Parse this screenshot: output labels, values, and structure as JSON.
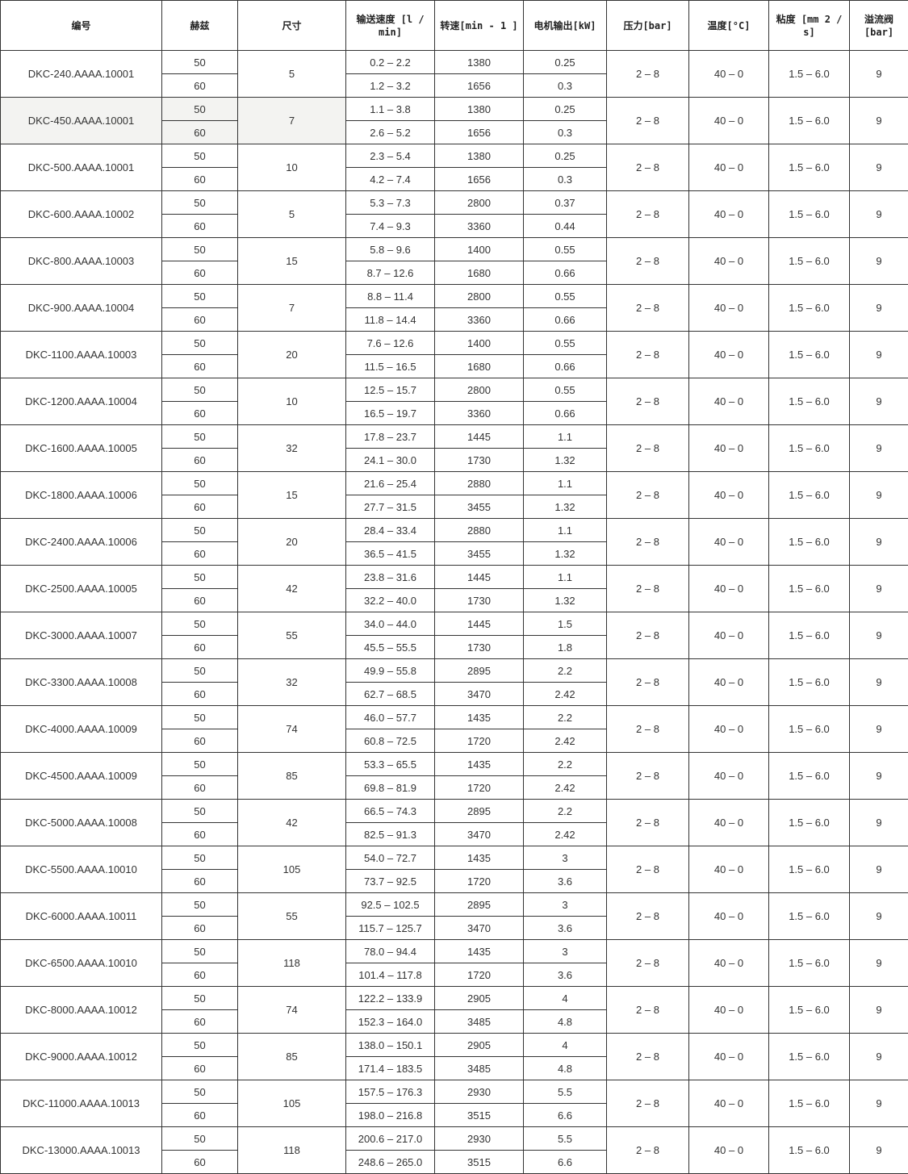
{
  "headers": [
    "编号",
    "赫兹",
    "尺寸",
    "输送速度 [l / min]",
    "转速[min - 1 ]",
    "电机输出[kW]",
    "压力[bar]",
    "温度[°C]",
    "粘度 [mm 2 / s]",
    "溢流阀 [bar]"
  ],
  "rows": [
    {
      "model": "DKC-240.AAAA.10001",
      "size": "5",
      "hz": [
        "50",
        "60"
      ],
      "flow": [
        "0.2 – 2.2",
        "1.2 – 3.2"
      ],
      "rpm": [
        "1380",
        "1656"
      ],
      "kw": [
        "0.25",
        "0.3"
      ],
      "pressure": "2 – 8",
      "temp": "40 – 0",
      "visc": "1.5 – 6.0",
      "relief": "9"
    },
    {
      "model": "DKC-450.AAAA.10001",
      "size": "7",
      "hz": [
        "50",
        "60"
      ],
      "flow": [
        "1.1 – 3.8",
        "2.6 – 5.2"
      ],
      "rpm": [
        "1380",
        "1656"
      ],
      "kw": [
        "0.25",
        "0.3"
      ],
      "pressure": "2 – 8",
      "temp": "40 – 0",
      "visc": "1.5 – 6.0",
      "relief": "9",
      "highlighted": true
    },
    {
      "model": "DKC-500.AAAA.10001",
      "size": "10",
      "hz": [
        "50",
        "60"
      ],
      "flow": [
        "2.3 – 5.4",
        "4.2 – 7.4"
      ],
      "rpm": [
        "1380",
        "1656"
      ],
      "kw": [
        "0.25",
        "0.3"
      ],
      "pressure": "2 – 8",
      "temp": "40 – 0",
      "visc": "1.5 – 6.0",
      "relief": "9"
    },
    {
      "model": "DKC-600.AAAA.10002",
      "size": "5",
      "hz": [
        "50",
        "60"
      ],
      "flow": [
        "5.3 – 7.3",
        "7.4 – 9.3"
      ],
      "rpm": [
        "2800",
        "3360"
      ],
      "kw": [
        "0.37",
        "0.44"
      ],
      "pressure": "2 – 8",
      "temp": "40 – 0",
      "visc": "1.5 – 6.0",
      "relief": "9"
    },
    {
      "model": "DKC-800.AAAA.10003",
      "size": "15",
      "hz": [
        "50",
        "60"
      ],
      "flow": [
        "5.8 – 9.6",
        "8.7 – 12.6"
      ],
      "rpm": [
        "1400",
        "1680"
      ],
      "kw": [
        "0.55",
        "0.66"
      ],
      "pressure": "2 – 8",
      "temp": "40 – 0",
      "visc": "1.5 – 6.0",
      "relief": "9"
    },
    {
      "model": "DKC-900.AAAA.10004",
      "size": "7",
      "hz": [
        "50",
        "60"
      ],
      "flow": [
        "8.8 – 11.4",
        "11.8 – 14.4"
      ],
      "rpm": [
        "2800",
        "3360"
      ],
      "kw": [
        "0.55",
        "0.66"
      ],
      "pressure": "2 – 8",
      "temp": "40 – 0",
      "visc": "1.5 – 6.0",
      "relief": "9"
    },
    {
      "model": "DKC-1100.AAAA.10003",
      "size": "20",
      "hz": [
        "50",
        "60"
      ],
      "flow": [
        "7.6 – 12.6",
        "11.5 – 16.5"
      ],
      "rpm": [
        "1400",
        "1680"
      ],
      "kw": [
        "0.55",
        "0.66"
      ],
      "pressure": "2 – 8",
      "temp": "40 – 0",
      "visc": "1.5 – 6.0",
      "relief": "9"
    },
    {
      "model": "DKC-1200.AAAA.10004",
      "size": "10",
      "hz": [
        "50",
        "60"
      ],
      "flow": [
        "12.5 – 15.7",
        "16.5 – 19.7"
      ],
      "rpm": [
        "2800",
        "3360"
      ],
      "kw": [
        "0.55",
        "0.66"
      ],
      "pressure": "2 – 8",
      "temp": "40 – 0",
      "visc": "1.5 – 6.0",
      "relief": "9"
    },
    {
      "model": "DKC-1600.AAAA.10005",
      "size": "32",
      "hz": [
        "50",
        "60"
      ],
      "flow": [
        "17.8 – 23.7",
        "24.1 – 30.0"
      ],
      "rpm": [
        "1445",
        "1730"
      ],
      "kw": [
        "1.1",
        "1.32"
      ],
      "pressure": "2 – 8",
      "temp": "40 – 0",
      "visc": "1.5 – 6.0",
      "relief": "9"
    },
    {
      "model": "DKC-1800.AAAA.10006",
      "size": "15",
      "hz": [
        "50",
        "60"
      ],
      "flow": [
        "21.6 – 25.4",
        "27.7 – 31.5"
      ],
      "rpm": [
        "2880",
        "3455"
      ],
      "kw": [
        "1.1",
        "1.32"
      ],
      "pressure": "2 – 8",
      "temp": "40 – 0",
      "visc": "1.5 – 6.0",
      "relief": "9"
    },
    {
      "model": "DKC-2400.AAAA.10006",
      "size": "20",
      "hz": [
        "50",
        "60"
      ],
      "flow": [
        "28.4 – 33.4",
        "36.5 – 41.5"
      ],
      "rpm": [
        "2880",
        "3455"
      ],
      "kw": [
        "1.1",
        "1.32"
      ],
      "pressure": "2 – 8",
      "temp": "40 – 0",
      "visc": "1.5 – 6.0",
      "relief": "9"
    },
    {
      "model": "DKC-2500.AAAA.10005",
      "size": "42",
      "hz": [
        "50",
        "60"
      ],
      "flow": [
        "23.8 – 31.6",
        "32.2 – 40.0"
      ],
      "rpm": [
        "1445",
        "1730"
      ],
      "kw": [
        "1.1",
        "1.32"
      ],
      "pressure": "2 – 8",
      "temp": "40 – 0",
      "visc": "1.5 – 6.0",
      "relief": "9"
    },
    {
      "model": "DKC-3000.AAAA.10007",
      "size": "55",
      "hz": [
        "50",
        "60"
      ],
      "flow": [
        "34.0 – 44.0",
        "45.5 – 55.5"
      ],
      "rpm": [
        "1445",
        "1730"
      ],
      "kw": [
        "1.5",
        "1.8"
      ],
      "pressure": "2 – 8",
      "temp": "40 – 0",
      "visc": "1.5 – 6.0",
      "relief": "9"
    },
    {
      "model": "DKC-3300.AAAA.10008",
      "size": "32",
      "hz": [
        "50",
        "60"
      ],
      "flow": [
        "49.9 – 55.8",
        "62.7 – 68.5"
      ],
      "rpm": [
        "2895",
        "3470"
      ],
      "kw": [
        "2.2",
        "2.42"
      ],
      "pressure": "2 – 8",
      "temp": "40 – 0",
      "visc": "1.5 – 6.0",
      "relief": "9"
    },
    {
      "model": "DKC-4000.AAAA.10009",
      "size": "74",
      "hz": [
        "50",
        "60"
      ],
      "flow": [
        "46.0 – 57.7",
        "60.8 – 72.5"
      ],
      "rpm": [
        "1435",
        "1720"
      ],
      "kw": [
        "2.2",
        "2.42"
      ],
      "pressure": "2 – 8",
      "temp": "40 – 0",
      "visc": "1.5 – 6.0",
      "relief": "9"
    },
    {
      "model": "DKC-4500.AAAA.10009",
      "size": "85",
      "hz": [
        "50",
        "60"
      ],
      "flow": [
        "53.3 – 65.5",
        "69.8 – 81.9"
      ],
      "rpm": [
        "1435",
        "1720"
      ],
      "kw": [
        "2.2",
        "2.42"
      ],
      "pressure": "2 – 8",
      "temp": "40 – 0",
      "visc": "1.5 – 6.0",
      "relief": "9"
    },
    {
      "model": "DKC-5000.AAAA.10008",
      "size": "42",
      "hz": [
        "50",
        "60"
      ],
      "flow": [
        "66.5 – 74.3",
        "82.5 – 91.3"
      ],
      "rpm": [
        "2895",
        "3470"
      ],
      "kw": [
        "2.2",
        "2.42"
      ],
      "pressure": "2 – 8",
      "temp": "40 – 0",
      "visc": "1.5 – 6.0",
      "relief": "9"
    },
    {
      "model": "DKC-5500.AAAA.10010",
      "size": "105",
      "hz": [
        "50",
        "60"
      ],
      "flow": [
        "54.0 – 72.7",
        "73.7 – 92.5"
      ],
      "rpm": [
        "1435",
        "1720"
      ],
      "kw": [
        "3",
        "3.6"
      ],
      "pressure": "2 – 8",
      "temp": "40 – 0",
      "visc": "1.5 – 6.0",
      "relief": "9"
    },
    {
      "model": "DKC-6000.AAAA.10011",
      "size": "55",
      "hz": [
        "50",
        "60"
      ],
      "flow": [
        "92.5 – 102.5",
        "115.7 – 125.7"
      ],
      "rpm": [
        "2895",
        "3470"
      ],
      "kw": [
        "3",
        "3.6"
      ],
      "pressure": "2 – 8",
      "temp": "40 – 0",
      "visc": "1.5 – 6.0",
      "relief": "9"
    },
    {
      "model": "DKC-6500.AAAA.10010",
      "size": "118",
      "hz": [
        "50",
        "60"
      ],
      "flow": [
        "78.0 – 94.4",
        "101.4 – 117.8"
      ],
      "rpm": [
        "1435",
        "1720"
      ],
      "kw": [
        "3",
        "3.6"
      ],
      "pressure": "2 – 8",
      "temp": "40 – 0",
      "visc": "1.5 – 6.0",
      "relief": "9"
    },
    {
      "model": "DKC-8000.AAAA.10012",
      "size": "74",
      "hz": [
        "50",
        "60"
      ],
      "flow": [
        "122.2 – 133.9",
        "152.3 – 164.0"
      ],
      "rpm": [
        "2905",
        "3485"
      ],
      "kw": [
        "4",
        "4.8"
      ],
      "pressure": "2 – 8",
      "temp": "40 – 0",
      "visc": "1.5 – 6.0",
      "relief": "9"
    },
    {
      "model": "DKC-9000.AAAA.10012",
      "size": "85",
      "hz": [
        "50",
        "60"
      ],
      "flow": [
        "138.0 – 150.1",
        "171.4 – 183.5"
      ],
      "rpm": [
        "2905",
        "3485"
      ],
      "kw": [
        "4",
        "4.8"
      ],
      "pressure": "2 – 8",
      "temp": "40 – 0",
      "visc": "1.5 – 6.0",
      "relief": "9"
    },
    {
      "model": "DKC-11000.AAAA.10013",
      "size": "105",
      "hz": [
        "50",
        "60"
      ],
      "flow": [
        "157.5 – 176.3",
        "198.0 – 216.8"
      ],
      "rpm": [
        "2930",
        "3515"
      ],
      "kw": [
        "5.5",
        "6.6"
      ],
      "pressure": "2 – 8",
      "temp": "40 – 0",
      "visc": "1.5 – 6.0",
      "relief": "9"
    },
    {
      "model": "DKC-13000.AAAA.10013",
      "size": "118",
      "hz": [
        "50",
        "60"
      ],
      "flow": [
        "200.6 – 217.0",
        "248.6 – 265.0"
      ],
      "rpm": [
        "2930",
        "3515"
      ],
      "kw": [
        "5.5",
        "6.6"
      ],
      "pressure": "2 – 8",
      "temp": "40 – 0",
      "visc": "1.5 – 6.0",
      "relief": "9"
    }
  ]
}
